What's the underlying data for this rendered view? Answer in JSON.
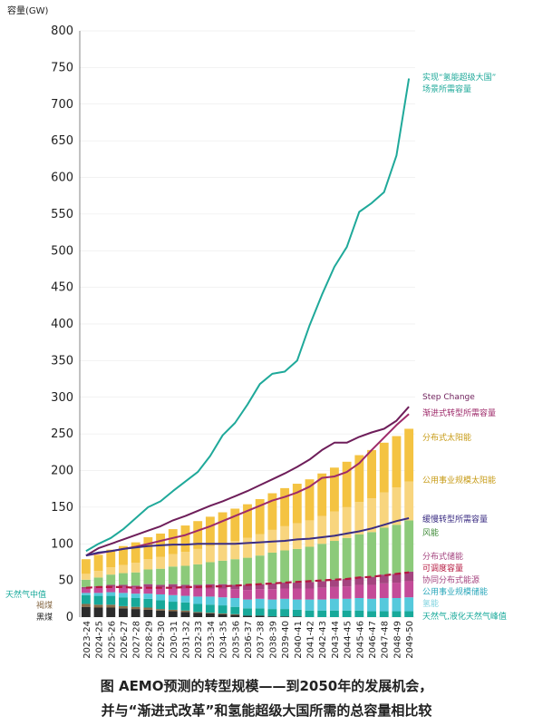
{
  "chart_data": {
    "type": "bar",
    "ylabel": "容量(GW)",
    "ylim": [
      0,
      800
    ],
    "yticks": [
      0,
      50,
      100,
      150,
      200,
      250,
      300,
      350,
      400,
      450,
      500,
      550,
      600,
      650,
      700,
      750,
      800
    ],
    "categories": [
      "2023-24",
      "2024-25",
      "2025-26",
      "2026-27",
      "2027-28",
      "2028-29",
      "2029-30",
      "2030-31",
      "2031-32",
      "2032-33",
      "2033-34",
      "2034-35",
      "2035-36",
      "2036-37",
      "2037-38",
      "2038-39",
      "2039-40",
      "2040-41",
      "2041-42",
      "2042-43",
      "2043-44",
      "2044-45",
      "2045-46",
      "2046-47",
      "2047-48",
      "2048-49",
      "2049-50"
    ],
    "stack_series": [
      {
        "name": "黑煤",
        "color": "#2b2b2b",
        "values": [
          14,
          13,
          13,
          12,
          11,
          10,
          9,
          8,
          7,
          6,
          5,
          4,
          3,
          2,
          2,
          1,
          1,
          1,
          0,
          0,
          0,
          0,
          0,
          0,
          0,
          0,
          0
        ]
      },
      {
        "name": "褐煤",
        "color": "#8a6d4a",
        "values": [
          4,
          4,
          4,
          3,
          3,
          3,
          2,
          2,
          2,
          1,
          1,
          1,
          1,
          0,
          0,
          0,
          0,
          0,
          0,
          0,
          0,
          0,
          0,
          0,
          0,
          0,
          0
        ]
      },
      {
        "name": "天然气,液化天然气峰值",
        "color": "#17a99a",
        "values": [
          12,
          12,
          12,
          12,
          12,
          12,
          12,
          11,
          11,
          11,
          11,
          11,
          10,
          10,
          10,
          10,
          10,
          9,
          9,
          9,
          9,
          9,
          9,
          8,
          8,
          8,
          8
        ]
      },
      {
        "name": "公用事业规模储能",
        "color": "#55c9dc",
        "values": [
          3,
          4,
          5,
          6,
          6,
          7,
          8,
          9,
          9,
          10,
          11,
          11,
          12,
          12,
          13,
          13,
          14,
          14,
          15,
          15,
          16,
          16,
          17,
          17,
          18,
          18,
          19
        ]
      },
      {
        "name": "可调度容量",
        "color": "#c44b98",
        "values": [
          6,
          7,
          7,
          8,
          8,
          9,
          9,
          10,
          10,
          11,
          11,
          12,
          12,
          13,
          13,
          14,
          14,
          15,
          15,
          16,
          16,
          17,
          18,
          19,
          20,
          21,
          22
        ]
      },
      {
        "name": "协同分布式能源",
        "color": "#a4447f",
        "values": [
          2,
          2,
          3,
          3,
          3,
          4,
          4,
          5,
          5,
          5,
          6,
          6,
          6,
          7,
          7,
          8,
          8,
          8,
          9,
          9,
          10,
          10,
          11,
          11,
          12,
          12,
          13
        ]
      },
      {
        "name": "风能",
        "color": "#8cca7a",
        "values": [
          10,
          12,
          14,
          16,
          18,
          20,
          22,
          24,
          26,
          28,
          30,
          32,
          35,
          37,
          39,
          42,
          44,
          46,
          48,
          51,
          53,
          56,
          58,
          61,
          64,
          67,
          70
        ]
      },
      {
        "name": "公用事业规模太阳能",
        "color": "#f8d57e",
        "values": [
          8,
          9,
          10,
          11,
          13,
          14,
          16,
          17,
          19,
          21,
          22,
          24,
          25,
          27,
          29,
          31,
          33,
          35,
          36,
          38,
          40,
          42,
          44,
          46,
          48,
          51,
          53
        ]
      },
      {
        "name": "分布式太阳能",
        "color": "#f4c342",
        "values": [
          20,
          22,
          24,
          26,
          28,
          30,
          32,
          34,
          36,
          38,
          40,
          42,
          44,
          46,
          48,
          50,
          52,
          54,
          56,
          58,
          60,
          62,
          64,
          66,
          68,
          70,
          72
        ]
      }
    ],
    "lines": [
      {
        "name": "实现“氢能超级大国”场景所需容量",
        "color": "#1fa99a",
        "values": [
          90,
          100,
          108,
          120,
          135,
          150,
          158,
          172,
          185,
          198,
          220,
          248,
          265,
          290,
          318,
          332,
          335,
          350,
          398,
          440,
          478,
          505,
          553,
          565,
          580,
          630,
          735
        ]
      },
      {
        "name": "Step Change",
        "color": "#6e1e5a",
        "values": [
          84,
          94,
          100,
          106,
          112,
          118,
          124,
          132,
          138,
          145,
          152,
          158,
          165,
          172,
          180,
          188,
          196,
          205,
          215,
          228,
          238,
          238,
          246,
          252,
          257,
          268,
          287
        ]
      },
      {
        "name": "渐进式转型所需容量",
        "color": "#9e2a6a",
        "values": [
          84,
          87,
          90,
          93,
          96,
          100,
          104,
          108,
          112,
          118,
          124,
          131,
          138,
          145,
          152,
          159,
          164,
          170,
          178,
          190,
          192,
          198,
          210,
          228,
          245,
          262,
          277
        ]
      },
      {
        "name": "缓慢转型所需容量",
        "color": "#3b2d83",
        "values": [
          84,
          88,
          90,
          93,
          95,
          97,
          98,
          99,
          99,
          100,
          100,
          100,
          100,
          101,
          102,
          103,
          104,
          106,
          107,
          109,
          111,
          114,
          117,
          121,
          126,
          131,
          135
        ]
      },
      {
        "name": "天然气中值",
        "color": "#b5173f",
        "dashed": true,
        "values": [
          40,
          41,
          41,
          41,
          40,
          40,
          40,
          40,
          41,
          41,
          42,
          42,
          43,
          44,
          45,
          46,
          47,
          48,
          49,
          50,
          51,
          52,
          54,
          55,
          57,
          59,
          61
        ]
      }
    ],
    "labels": {
      "hydrogen_a": "实现“氢能超级大国”",
      "hydrogen_b": "场景所需容量",
      "step": "Step Change",
      "progressive": "渐进式转型所需容量",
      "dist_solar": "分布式太阳能",
      "utility_solar": "公用事业规模太阳能",
      "slow": "缓慢转型所需容量",
      "wind": "风能",
      "dist_storage": "分布式储能",
      "dispatchable": "可调度容量",
      "coord_der": "协同分布式能源",
      "utility_storage": "公用事业规模储能",
      "hydro": "氢能",
      "gas_peak": "天然气,液化天然气峰值",
      "gas_median": "天然气中值",
      "brown_coal": "褐煤",
      "black_coal": "黑煤"
    }
  },
  "caption": {
    "line1": "图  AEMO预测的转型规模——到2050年的发展机会，",
    "line2": "并与“渐进式改革”和氢能超级大国所需的总容量相比较"
  }
}
